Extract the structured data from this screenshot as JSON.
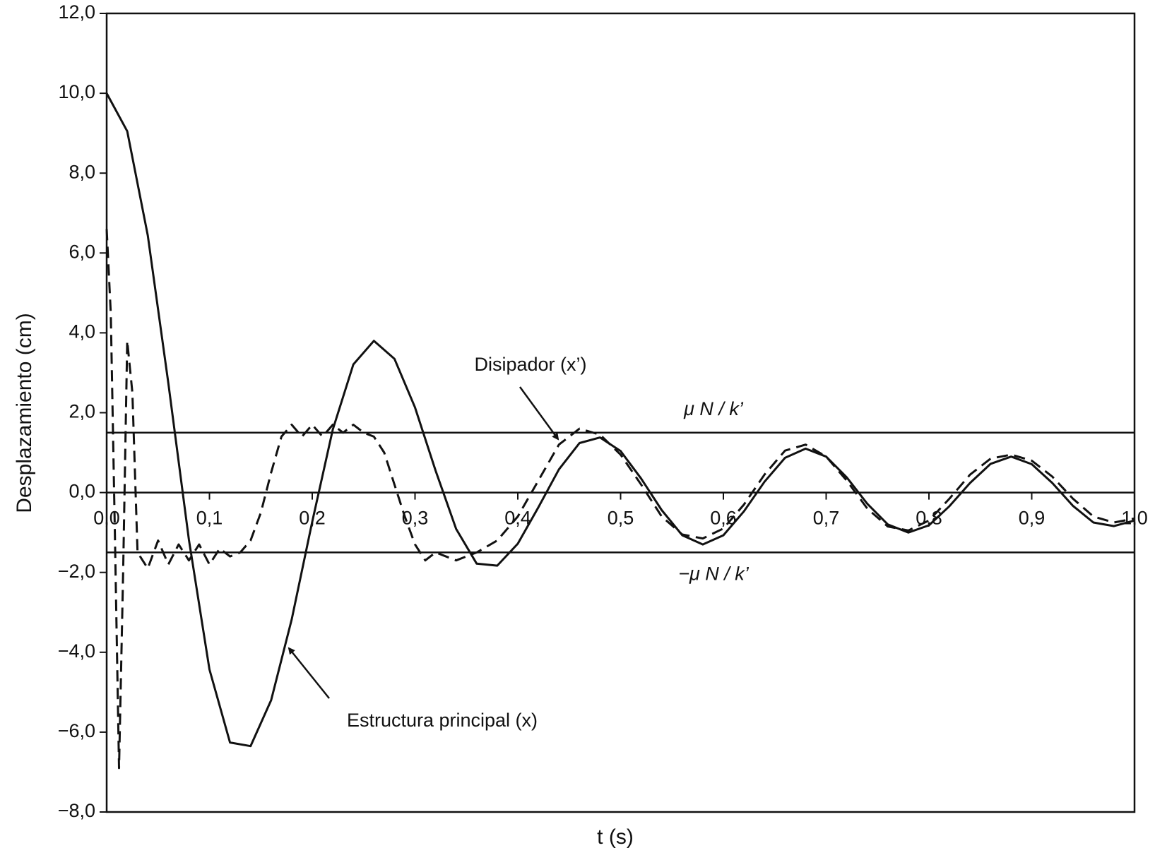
{
  "chart_data": {
    "type": "line",
    "y_label": "Desplazamiento (cm)",
    "x_label": "t (s)",
    "xlim": [
      0,
      1
    ],
    "ylim": [
      -8,
      12
    ],
    "xticks": [
      {
        "value": 0,
        "label": "0,0"
      },
      {
        "value": 0.1,
        "label": "0,1"
      },
      {
        "value": 0.2,
        "label": "0,2"
      },
      {
        "value": 0.3,
        "label": "0,3"
      },
      {
        "value": 0.4,
        "label": "0,4"
      },
      {
        "value": 0.5,
        "label": "0,5"
      },
      {
        "value": 0.6,
        "label": "0,6"
      },
      {
        "value": 0.7,
        "label": "0,7"
      },
      {
        "value": 0.8,
        "label": "0,8"
      },
      {
        "value": 0.9,
        "label": "0,9"
      },
      {
        "value": 1,
        "label": "1,0"
      }
    ],
    "yticks": [
      {
        "value": -8,
        "label": "−8,0"
      },
      {
        "value": -6,
        "label": "−6,0"
      },
      {
        "value": -4,
        "label": "−4,0"
      },
      {
        "value": -2,
        "label": "−2,0"
      },
      {
        "value": 0,
        "label": "0,0"
      },
      {
        "value": 2,
        "label": "2,0"
      },
      {
        "value": 4,
        "label": "4,0"
      },
      {
        "value": 6,
        "label": "6,0"
      },
      {
        "value": 8,
        "label": "8,0"
      },
      {
        "value": 10,
        "label": "10,0"
      },
      {
        "value": 12,
        "label": "12,0"
      }
    ],
    "reference_lines": [
      {
        "value": 1.5,
        "label": "μ N / k’"
      },
      {
        "value": -1.5,
        "label": "−μ N / k’"
      }
    ],
    "series": [
      {
        "name": "Estructura principal (x)",
        "color": "#111111",
        "dash": false,
        "x": [
          0,
          0.02,
          0.04,
          0.06,
          0.08,
          0.1,
          0.12,
          0.14,
          0.16,
          0.18,
          0.2,
          0.22,
          0.24,
          0.26,
          0.28,
          0.3,
          0.32,
          0.34,
          0.36,
          0.38,
          0.4,
          0.42,
          0.44,
          0.46,
          0.48,
          0.5,
          0.52,
          0.54,
          0.56,
          0.58,
          0.6,
          0.62,
          0.64,
          0.66,
          0.68,
          0.7,
          0.72,
          0.74,
          0.76,
          0.78,
          0.8,
          0.82,
          0.84,
          0.86,
          0.88,
          0.9,
          0.92,
          0.94,
          0.96,
          0.98,
          1.0
        ],
        "values": [
          10,
          9.05,
          6.44,
          2.74,
          -1.18,
          -4.43,
          -6.26,
          -6.35,
          -5.2,
          -3.18,
          -0.73,
          1.58,
          3.21,
          3.8,
          3.35,
          2.13,
          0.55,
          -0.91,
          -1.78,
          -1.83,
          -1.28,
          -0.37,
          0.58,
          1.24,
          1.38,
          1.04,
          0.35,
          -0.44,
          -1.07,
          -1.3,
          -1.07,
          -0.47,
          0.27,
          0.87,
          1.1,
          0.9,
          0.38,
          -0.28,
          -0.8,
          -1.0,
          -0.82,
          -0.34,
          0.24,
          0.72,
          0.9,
          0.71,
          0.24,
          -0.33,
          -0.75,
          -0.84,
          -0.7
        ]
      },
      {
        "name": "Disipador (x’)",
        "color": "#111111",
        "dash": true,
        "x": [
          0,
          0.004,
          0.008,
          0.012,
          0.016,
          0.02,
          0.025,
          0.03,
          0.04,
          0.05,
          0.06,
          0.07,
          0.08,
          0.09,
          0.1,
          0.11,
          0.12,
          0.13,
          0.14,
          0.15,
          0.16,
          0.17,
          0.18,
          0.19,
          0.2,
          0.21,
          0.22,
          0.23,
          0.24,
          0.25,
          0.26,
          0.27,
          0.28,
          0.29,
          0.3,
          0.31,
          0.32,
          0.34,
          0.36,
          0.38,
          0.4,
          0.42,
          0.44,
          0.46,
          0.48,
          0.5,
          0.52,
          0.54,
          0.56,
          0.58,
          0.6,
          0.62,
          0.64,
          0.66,
          0.68,
          0.7,
          0.72,
          0.74,
          0.76,
          0.78,
          0.8,
          0.82,
          0.84,
          0.86,
          0.88,
          0.9,
          0.92,
          0.94,
          0.96,
          0.98,
          1.0
        ],
        "values": [
          6.6,
          4.5,
          -1,
          -6.9,
          -2,
          3.8,
          2.5,
          -1.5,
          -1.9,
          -1.2,
          -1.8,
          -1.3,
          -1.7,
          -1.3,
          -1.8,
          -1.4,
          -1.6,
          -1.5,
          -1.2,
          -0.5,
          0.5,
          1.4,
          1.7,
          1.4,
          1.7,
          1.4,
          1.7,
          1.5,
          1.7,
          1.5,
          1.4,
          1.0,
          0.2,
          -0.6,
          -1.3,
          -1.7,
          -1.5,
          -1.7,
          -1.5,
          -1.2,
          -0.6,
          0.3,
          1.2,
          1.6,
          1.45,
          0.95,
          0.2,
          -0.6,
          -1.05,
          -1.15,
          -0.9,
          -0.3,
          0.45,
          1.05,
          1.2,
          0.9,
          0.3,
          -0.4,
          -0.85,
          -0.95,
          -0.7,
          -0.15,
          0.45,
          0.85,
          0.95,
          0.8,
          0.4,
          -0.15,
          -0.6,
          -0.75,
          -0.65
        ]
      }
    ]
  }
}
